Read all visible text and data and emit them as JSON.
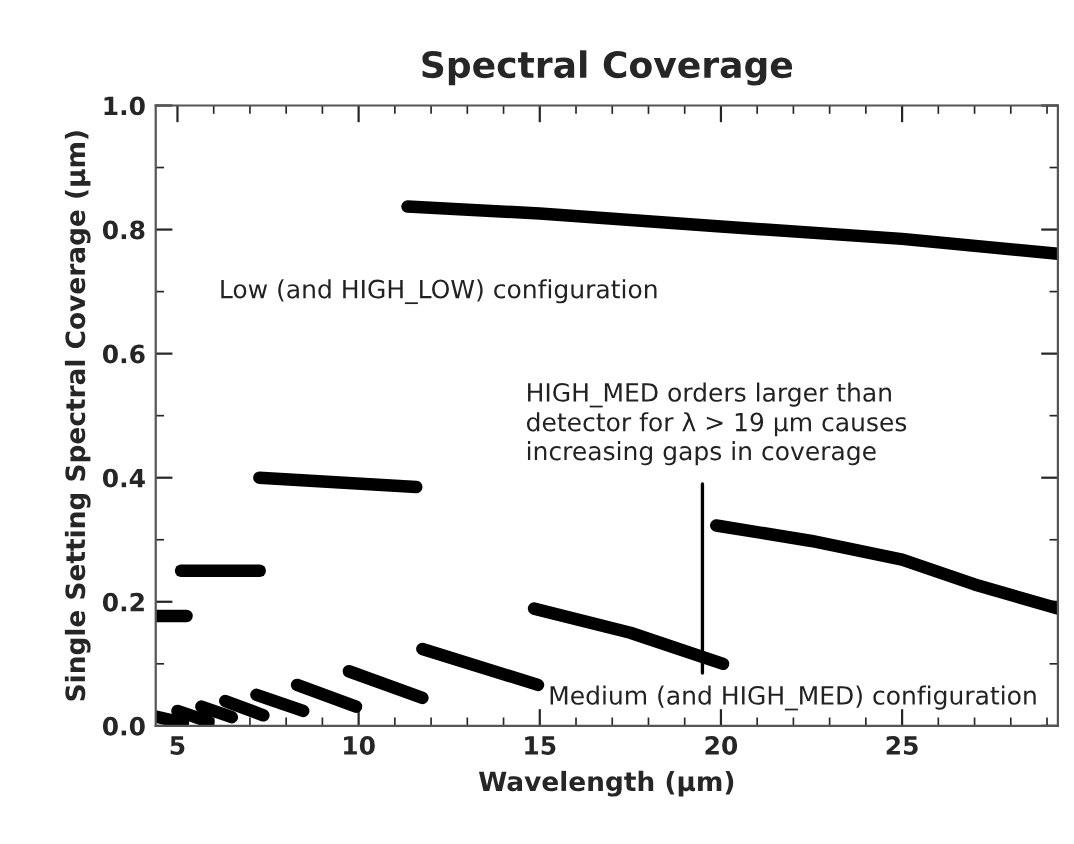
{
  "chart_data": {
    "type": "line",
    "title": "Spectral Coverage",
    "xlabel": "Wavelength (µm)",
    "ylabel": "Single Setting Spectral Coverage (µm)",
    "xlim": [
      4.4,
      29.3
    ],
    "xticks": [
      5,
      10,
      15,
      20,
      25
    ],
    "ylim": [
      0,
      1.0
    ],
    "yticks": [
      {
        "value": 0,
        "label": "0.0"
      },
      0.2,
      0.4,
      0.6,
      0.8,
      {
        "value": 1,
        "label": "1.0"
      }
    ],
    "grid": false,
    "legend": false,
    "series": [
      {
        "name": "Low (and HIGH_LOW) configuration",
        "color": "#000000",
        "x": [
          11.35,
          15.0,
          20.0,
          25.0,
          29.3
        ],
        "values": [
          0.837,
          0.826,
          0.805,
          0.785,
          0.761
        ]
      },
      {
        "color": "#000000",
        "x": [
          4.4,
          5.25
        ],
        "values": [
          0.177,
          0.177
        ]
      },
      {
        "color": "#000000",
        "x": [
          5.1,
          7.27
        ],
        "values": [
          0.25,
          0.25
        ]
      },
      {
        "color": "#000000",
        "x": [
          7.26,
          11.59
        ],
        "values": [
          0.4,
          0.385
        ]
      },
      {
        "color": "#000000",
        "x": [
          4.4,
          5.15
        ],
        "values": [
          0.015,
          0.005
        ]
      },
      {
        "color": "#000000",
        "x": [
          5.0,
          5.85
        ],
        "values": [
          0.024,
          0.007
        ]
      },
      {
        "color": "#000000",
        "x": [
          5.66,
          6.5
        ],
        "values": [
          0.031,
          0.014
        ]
      },
      {
        "color": "#000000",
        "x": [
          6.32,
          7.37
        ],
        "values": [
          0.04,
          0.017
        ]
      },
      {
        "color": "#000000",
        "x": [
          7.18,
          8.47
        ],
        "values": [
          0.05,
          0.024
        ]
      },
      {
        "color": "#000000",
        "x": [
          8.3,
          9.93
        ],
        "values": [
          0.066,
          0.031
        ]
      },
      {
        "color": "#000000",
        "x": [
          9.73,
          11.76
        ],
        "values": [
          0.088,
          0.045
        ]
      },
      {
        "name": "Medium (and HIGH_MED) configuration",
        "color": "#000000",
        "x": [
          11.76,
          14.95
        ],
        "values": [
          0.124,
          0.066
        ]
      },
      {
        "color": "#000000",
        "x": [
          14.84,
          17.5,
          20.06
        ],
        "values": [
          0.189,
          0.15,
          0.1
        ]
      },
      {
        "color": "#000000",
        "x": [
          19.87,
          22.5,
          25.0,
          27.0,
          29.3
        ],
        "values": [
          0.323,
          0.298,
          0.268,
          0.228,
          0.189
        ]
      }
    ],
    "annotations": [
      "HIGH_MED orders larger than\ndetector for λ > 19 µm causes\nincreasing gaps in coverage"
    ]
  }
}
